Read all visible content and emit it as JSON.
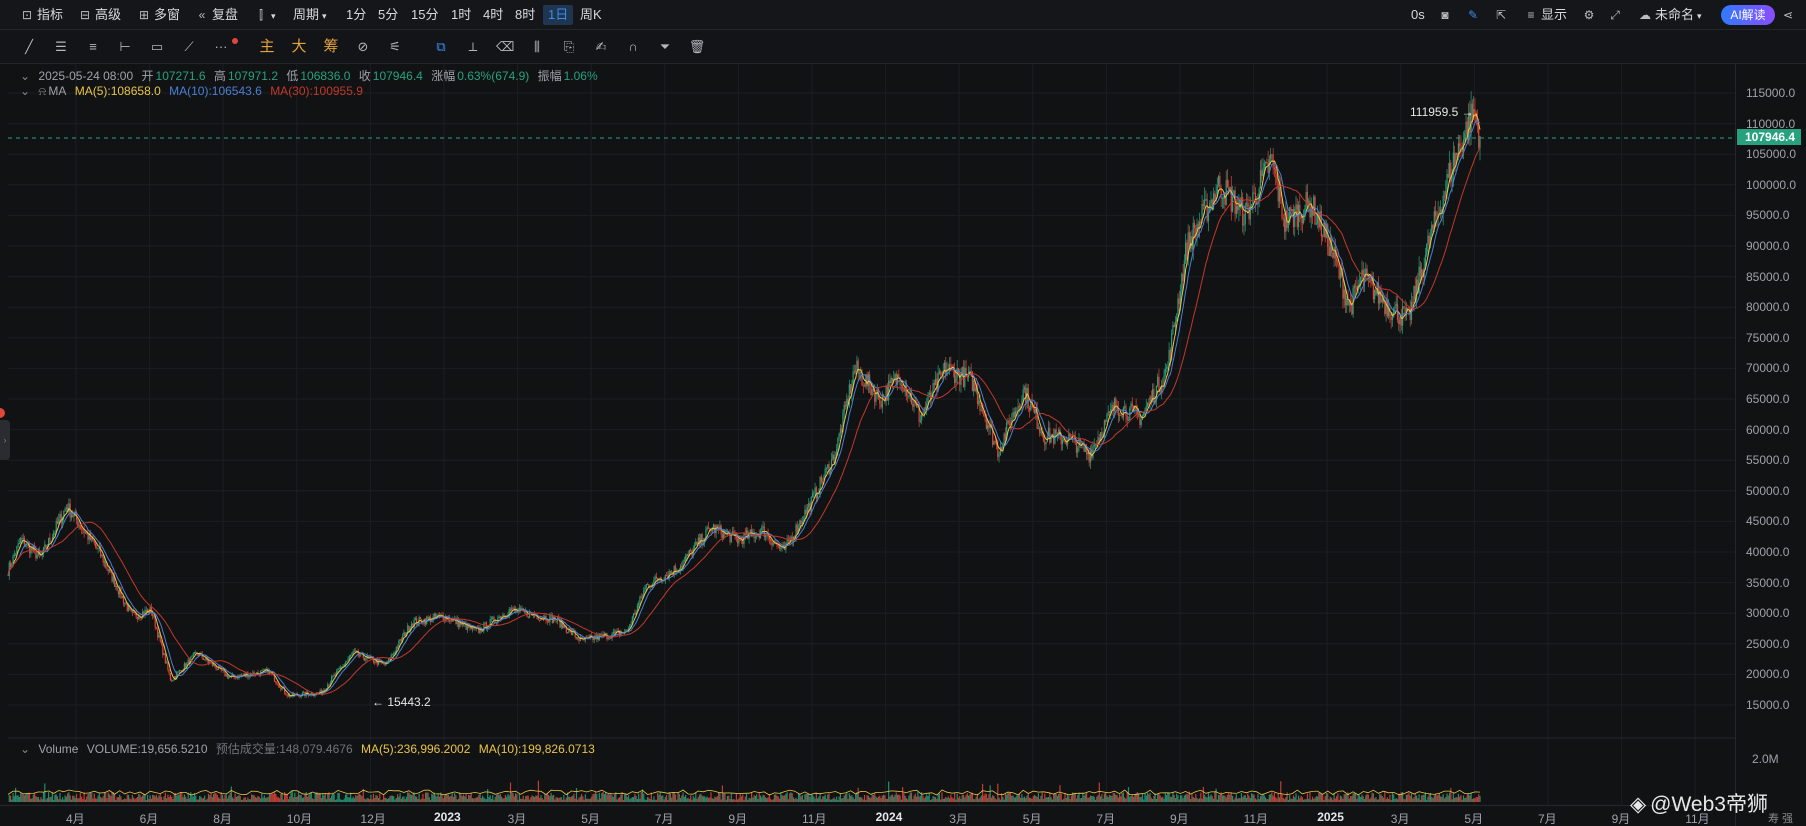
{
  "toolbar": {
    "indicator": "指标",
    "advanced": "高级",
    "multiwin": "多窗",
    "replay": "复盘",
    "period": "周期",
    "periods": [
      "1分",
      "5分",
      "15分",
      "1时",
      "4时",
      "8时",
      "1日",
      "周K"
    ],
    "active_period": "1日",
    "countdown": "0s",
    "display": "显示",
    "layout_name": "未命名",
    "ai_badge": "AI解读"
  },
  "drawing_tools": {
    "main": "主",
    "big": "大",
    "chips": "筹"
  },
  "legend": {
    "date": "2025-05-24 08:00",
    "open_label": "开",
    "open": "107271.6",
    "high_label": "高",
    "high": "107971.2",
    "low_label": "低",
    "low": "106836.0",
    "close_label": "收",
    "close": "107946.4",
    "change_label": "涨幅",
    "change": "0.63%(674.9)",
    "amp_label": "振幅",
    "amp": "1.06%",
    "ma_title": "MA",
    "ma5": "MA(5):108658.0",
    "ma10": "MA(10):106543.6",
    "ma30": "MA(30):100955.9"
  },
  "volume_legend": {
    "title": "Volume",
    "volume": "VOLUME:19,656.5210",
    "est": "预估成交量:148,079.4676",
    "ma5": "MA(5):236,996.2002",
    "ma10": "MA(10):199,826.0713",
    "axis_tick": "2.0M"
  },
  "last_price": "107946.4",
  "annotations": {
    "high_marker": "111959.5 →",
    "low_marker": "← 15443.2"
  },
  "watermark": "@Web3帝狮",
  "corner": "寿 强",
  "colors": {
    "up": "#27a17e",
    "down": "#e0463a",
    "ma5": "#e8c547",
    "ma10": "#4a7fd4",
    "ma30": "#c0392b",
    "accent": "#3b8cf0"
  },
  "chart_data": {
    "type": "candlestick",
    "series_label": "MA",
    "price_ticks": [
      15000,
      20000,
      25000,
      30000,
      35000,
      40000,
      45000,
      50000,
      55000,
      60000,
      65000,
      70000,
      75000,
      80000,
      85000,
      90000,
      95000,
      100000,
      105000,
      110000,
      115000
    ],
    "ylim": [
      15000,
      115000
    ],
    "x_ticks": [
      "4月",
      "6月",
      "8月",
      "10月",
      "12月",
      "2023",
      "3月",
      "5月",
      "7月",
      "9月",
      "11月",
      "2024",
      "3月",
      "5月",
      "7月",
      "9月",
      "11月",
      "2025",
      "3月",
      "5月",
      "7月",
      "9月",
      "11月"
    ],
    "price_path": [
      [
        0,
        37000
      ],
      [
        2,
        42000
      ],
      [
        5,
        39000
      ],
      [
        9,
        47500
      ],
      [
        14,
        40000
      ],
      [
        19,
        29500
      ],
      [
        22,
        30500
      ],
      [
        25,
        19000
      ],
      [
        29,
        23500
      ],
      [
        34,
        19500
      ],
      [
        40,
        20500
      ],
      [
        43,
        16500
      ],
      [
        48,
        17000
      ],
      [
        53,
        23500
      ],
      [
        58,
        21500
      ],
      [
        62,
        28500
      ],
      [
        67,
        29500
      ],
      [
        72,
        27000
      ],
      [
        77,
        30500
      ],
      [
        84,
        29000
      ],
      [
        88,
        25500
      ],
      [
        95,
        27000
      ],
      [
        98,
        34500
      ],
      [
        103,
        37500
      ],
      [
        108,
        44000
      ],
      [
        112,
        42000
      ],
      [
        116,
        43500
      ],
      [
        119,
        40000
      ],
      [
        123,
        47500
      ],
      [
        127,
        56000
      ],
      [
        130,
        70000
      ],
      [
        134,
        65000
      ],
      [
        137,
        69000
      ],
      [
        140,
        62000
      ],
      [
        144,
        70000
      ],
      [
        148,
        68000
      ],
      [
        152,
        56500
      ],
      [
        156,
        66500
      ],
      [
        159,
        59000
      ],
      [
        163,
        58500
      ],
      [
        166,
        56000
      ],
      [
        170,
        64000
      ],
      [
        174,
        62000
      ],
      [
        178,
        70000
      ],
      [
        181,
        90000
      ],
      [
        186,
        100000
      ],
      [
        190,
        95000
      ],
      [
        194,
        104000
      ],
      [
        196,
        94000
      ],
      [
        200,
        97000
      ],
      [
        203,
        90000
      ],
      [
        206,
        80000
      ],
      [
        208,
        85000
      ],
      [
        212,
        80000
      ],
      [
        215,
        78000
      ],
      [
        218,
        90000
      ],
      [
        222,
        104000
      ],
      [
        225,
        111959.5
      ],
      [
        226,
        107946.4
      ]
    ],
    "high_point": 111959.5,
    "low_point": 15443.2,
    "last_close": 107946.4,
    "volume_ylim": [
      0,
      2000000
    ]
  }
}
